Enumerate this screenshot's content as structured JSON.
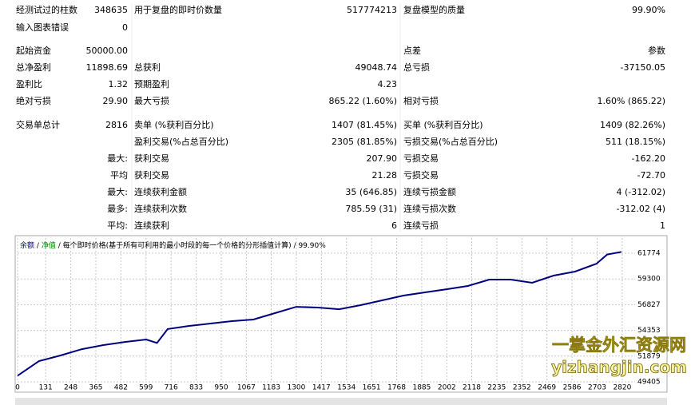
{
  "report": {
    "rows": [
      [
        "经测试过的柱数",
        "348635",
        "用于复盘的即时价数量",
        "517774213",
        "复盘模型的质量",
        "99.90%"
      ],
      [
        "输入图表错误",
        "0",
        null,
        null,
        null,
        null
      ],
      [
        "起始资金",
        "50000.00",
        null,
        null,
        "点差",
        "参数"
      ],
      [
        "总净盈利",
        "11898.69",
        "总获利",
        "49048.74",
        "总亏损",
        "-37150.05"
      ],
      [
        "盈利比",
        "1.32",
        "预期盈利",
        "4.23",
        null,
        null
      ],
      [
        "绝对亏损",
        "29.90",
        "最大亏损",
        "865.22 (1.60%)",
        "相对亏损",
        "1.60% (865.22)"
      ],
      [
        "交易单总计",
        "2816",
        "卖单 (%获利百分比)",
        "1407 (81.45%)",
        "买单 (%获利百分比)",
        "1409 (82.26%)"
      ],
      [
        null,
        null,
        "盈利交易(%占总百分比)",
        "2305 (81.85%)",
        "亏损交易(%占总百分比)",
        "511 (18.15%)"
      ],
      [
        null,
        "最大:",
        "获利交易",
        "207.90",
        "亏损交易",
        "-162.20"
      ],
      [
        null,
        "平均",
        "获利交易",
        "21.28",
        "亏损交易",
        "-72.70"
      ],
      [
        null,
        "最大:",
        "连续获利金额",
        "35 (646.85)",
        "连续亏损金额",
        "4 (-312.02)"
      ],
      [
        null,
        "最多:",
        "连续获利次数",
        "785.59 (31)",
        "连续亏损次数",
        "-312.02 (4)"
      ],
      [
        null,
        "平均:",
        "连续获利",
        "6",
        "连续亏损",
        "1"
      ]
    ]
  },
  "chart_data": {
    "type": "line",
    "series": [
      {
        "name": "余额",
        "color": "#00007f",
        "x": [
          0,
          100,
          200,
          300,
          400,
          500,
          600,
          650,
          700,
          800,
          900,
          1000,
          1100,
          1200,
          1300,
          1400,
          1500,
          1600,
          1700,
          1800,
          1900,
          2000,
          2100,
          2200,
          2300,
          2400,
          2500,
          2600,
          2700,
          2750,
          2816
        ],
        "values": [
          50000,
          51400,
          51940,
          52550,
          52940,
          53240,
          53480,
          53150,
          54480,
          54780,
          55010,
          55240,
          55400,
          56010,
          56620,
          56550,
          56390,
          56780,
          57240,
          57700,
          58010,
          58310,
          58620,
          59240,
          59240,
          58930,
          59620,
          60010,
          60770,
          61650,
          61898.69
        ]
      }
    ],
    "equity_label": "净值",
    "equity_color": "#008000",
    "separator": "/",
    "legend_note": "每个即时价格(基于所有可利用的最小时段的每一个价格的分形插值计算)",
    "quality": "99.90%",
    "xlim": [
      0,
      2880
    ],
    "xticks": [
      0,
      131,
      248,
      365,
      482,
      599,
      716,
      833,
      950,
      1067,
      1183,
      1300,
      1417,
      1534,
      1651,
      1768,
      1885,
      2002,
      2118,
      2235,
      2352,
      2469,
      2586,
      2703,
      2820
    ],
    "ylim": [
      49405,
      63233
    ],
    "yticks": [
      49405,
      51879,
      54353,
      56827,
      59300,
      61774
    ],
    "grid": true
  },
  "watermark": {
    "title": "一掌金外汇资源网",
    "url": "yizhangjin.com"
  }
}
